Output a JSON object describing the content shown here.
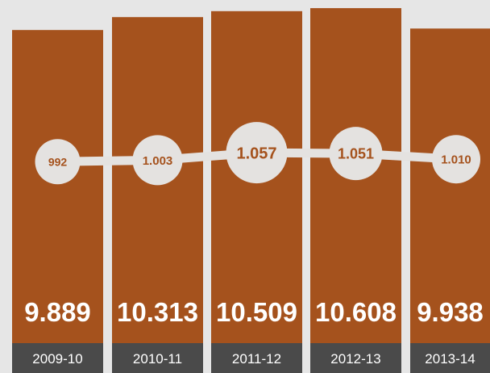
{
  "colors": {
    "background": "#e6e6e6",
    "bar": "#a5521d",
    "category_band": "#4a4a4a",
    "bubble": "#e4e2e0",
    "bubble_text": "#a5521d",
    "value_text": "#ffffff"
  },
  "chart_data": {
    "type": "bar",
    "categories": [
      "2009-10",
      "2010-11",
      "2011-12",
      "2012-13",
      "2013-14"
    ],
    "series": [
      {
        "values": [
          9889,
          10313,
          10509,
          10608,
          9938
        ],
        "labels": [
          "9.889",
          "10.313",
          "10.509",
          "10.608",
          "9.938"
        ]
      },
      {
        "type": "line",
        "values": [
          992,
          1003,
          1057,
          1051,
          1010
        ],
        "labels": [
          "992",
          "1.003",
          "1.057",
          "1.051",
          "1.010"
        ]
      }
    ],
    "grid": false,
    "legend": "none"
  }
}
